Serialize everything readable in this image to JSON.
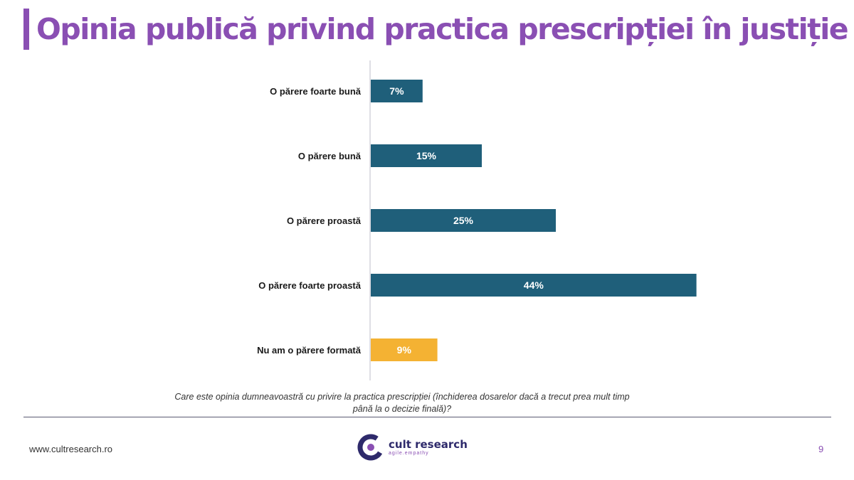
{
  "header": {
    "title": "Opinia publică privind practica prescripției în justiție"
  },
  "chart_data": {
    "type": "bar",
    "orientation": "horizontal",
    "categories": [
      "O părere foarte bună",
      "O părere bună",
      "O părere proastă",
      "O părere foarte proastă",
      "Nu am o părere formată"
    ],
    "values": [
      7,
      15,
      25,
      44,
      9
    ],
    "value_labels": [
      "7%",
      "15%",
      "25%",
      "44%",
      "9%"
    ],
    "bar_colors": [
      "#1f5f7a",
      "#1f5f7a",
      "#1f5f7a",
      "#1f5f7a",
      "#f4b233"
    ],
    "xlim": [
      0,
      50
    ],
    "grid": false
  },
  "footer": {
    "question_line1": "Care este opinia dumneavoastră cu privire la practica prescripției (închiderea dosarelor dacă a trecut prea mult timp",
    "question_line2": "până la o decizie finală)?",
    "website": "www.cultresearch.ro",
    "page_number": "9",
    "logo_name": "cult research",
    "logo_tagline": "agile.empathy"
  },
  "colors": {
    "accent": "#8a4fb3",
    "bar": "#1f5f7a",
    "highlight": "#f4b233",
    "logo_dark": "#2e2a6b"
  }
}
